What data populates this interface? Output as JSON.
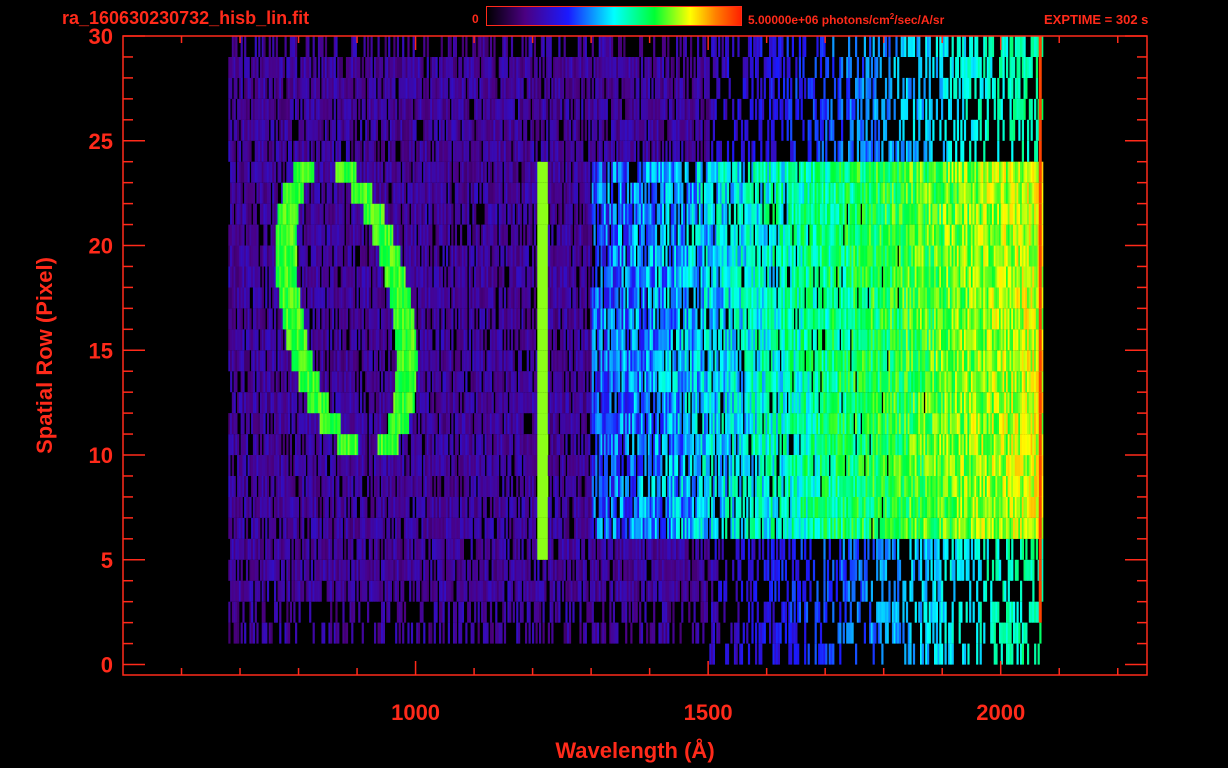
{
  "header": {
    "file_title": "ra_1606302307­32_hisb_lin.fit",
    "colorbar_min": "0",
    "colorbar_max_prefix": "5.00000e+06 photons/cm",
    "colorbar_max_sup": "2",
    "colorbar_max_suffix": "/sec/A/sr",
    "exptime": "EXPTIME = 302 s"
  },
  "colors": {
    "axis": "#ff2a1a",
    "background": "#000000",
    "colormap": [
      "#000000",
      "#4b0082",
      "#1a1aff",
      "#00ffff",
      "#00ff33",
      "#ffff00",
      "#ff8000",
      "#ff2000"
    ]
  },
  "chart_data": {
    "type": "heatmap",
    "title": "ra_160630230732_hisb_lin.fit",
    "xlabel": "Wavelength (Å)",
    "ylabel": "Spatial Row (Pixel)",
    "xlim": [
      500,
      2250
    ],
    "ylim": [
      -0.5,
      30
    ],
    "x_ticks": [
      1000,
      1500,
      2000
    ],
    "y_ticks": [
      0,
      5,
      10,
      15,
      20,
      25,
      30
    ],
    "colorbar_range": [
      0,
      5000000
    ],
    "colorbar_unit": "photons/cm^2/sec/A/sr",
    "exptime_s": 302,
    "features": [
      {
        "kind": "vertical-line",
        "x": 1216,
        "y_range": [
          5,
          24
        ],
        "level": 0.65
      },
      {
        "kind": "loop",
        "x_range": [
          800,
          1020
        ],
        "y_range": [
          10,
          24
        ],
        "level": 0.55
      },
      {
        "kind": "continuum",
        "x_range": [
          1300,
          2060
        ],
        "y_range": [
          6,
          23
        ],
        "level_start": 0.3,
        "level_end": 0.7
      },
      {
        "kind": "edge",
        "x": 2065,
        "y_range": [
          2,
          29
        ],
        "level": 0.95
      }
    ]
  }
}
